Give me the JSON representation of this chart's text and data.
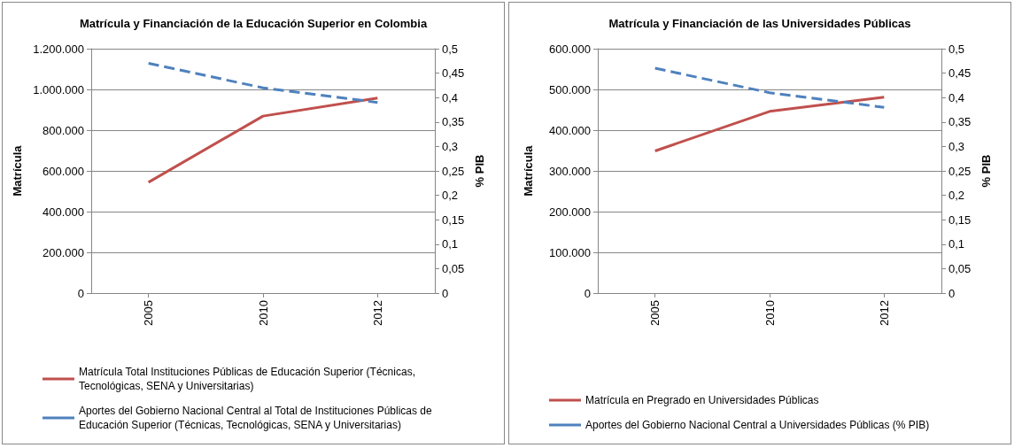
{
  "chart_data": [
    {
      "type": "line",
      "title": "Matrícula y Financiación de la Educación Superior en Colombia",
      "ylabel": "Matrícula",
      "y2label": "% PIB",
      "categories": [
        "2005",
        "2010",
        "2012"
      ],
      "series": [
        {
          "name": "Matrícula Total Instituciones Públicas de Educación Superior (Técnicas, Tecnológicas, SENA y Universitarias)",
          "color": "#c0504d",
          "values": [
            544000,
            869000,
            958000
          ],
          "line_style": "solid"
        },
        {
          "name": "Aportes del Gobierno Nacional Central al Total de Instituciones Públicas de Educación Superior (Técnicas, Tecnológicas, SENA y Universitarias)",
          "color": "#4f81bd",
          "values": [
            0.47,
            0.42,
            0.39
          ],
          "axis": "y2",
          "line_style": "dashed"
        }
      ],
      "ylim": [
        0,
        1200000
      ],
      "yticks": [
        0,
        {
          "value": 200000,
          "label": "200.000"
        },
        {
          "value": 400000,
          "label": "400.000"
        },
        {
          "value": 600000,
          "label": "600.000"
        },
        {
          "value": 800000,
          "label": "800.000"
        },
        {
          "value": 1000000,
          "label": "1.000.000"
        },
        {
          "value": 1200000,
          "label": "1.200.000"
        }
      ],
      "y2lim": [
        0,
        0.5
      ],
      "y2ticks": [
        0,
        {
          "value": 0.05,
          "label": "0,05"
        },
        {
          "value": 0.1,
          "label": "0,1"
        },
        {
          "value": 0.15,
          "label": "0,15"
        },
        {
          "value": 0.2,
          "label": "0,2"
        },
        {
          "value": 0.25,
          "label": "0,25"
        },
        {
          "value": 0.3,
          "label": "0,3"
        },
        {
          "value": 0.35,
          "label": "0,35"
        },
        {
          "value": 0.4,
          "label": "0,4"
        },
        {
          "value": 0.45,
          "label": "0,45"
        },
        {
          "value": 0.5,
          "label": "0,5"
        }
      ],
      "grid": "y",
      "legend": "bottom",
      "marker": "none"
    },
    {
      "type": "line",
      "title": "Matrícula y Financiación de las Universidades Públicas",
      "ylabel": "Matrícula",
      "y2label": "% PIB",
      "categories": [
        "2005",
        "2010",
        "2012"
      ],
      "series": [
        {
          "name": "Matrícula en Pregrado en Universidades Públicas",
          "color": "#c0504d",
          "values": [
            349000,
            446000,
            481000
          ],
          "line_style": "solid"
        },
        {
          "name": "Aportes del Gobierno Nacional Central a Universidades Públicas (% PIB)",
          "color": "#4f81bd",
          "values": [
            0.46,
            0.41,
            0.38
          ],
          "axis": "y2",
          "line_style": "dashed"
        }
      ],
      "ylim": [
        0,
        600000
      ],
      "yticks": [
        0,
        {
          "value": 100000,
          "label": "100.000"
        },
        {
          "value": 200000,
          "label": "200.000"
        },
        {
          "value": 300000,
          "label": "300.000"
        },
        {
          "value": 400000,
          "label": "400.000"
        },
        {
          "value": 500000,
          "label": "500.000"
        },
        {
          "value": 600000,
          "label": "600.000"
        }
      ],
      "y2lim": [
        0,
        0.5
      ],
      "y2ticks": [
        0,
        {
          "value": 0.05,
          "label": "0,05"
        },
        {
          "value": 0.1,
          "label": "0,1"
        },
        {
          "value": 0.15,
          "label": "0,15"
        },
        {
          "value": 0.2,
          "label": "0,2"
        },
        {
          "value": 0.25,
          "label": "0,25"
        },
        {
          "value": 0.3,
          "label": "0,3"
        },
        {
          "value": 0.35,
          "label": "0,35"
        },
        {
          "value": 0.4,
          "label": "0,4"
        },
        {
          "value": 0.45,
          "label": "0,45"
        },
        {
          "value": 0.5,
          "label": "0,5"
        }
      ],
      "grid": "y",
      "legend": "bottom",
      "marker": "none"
    }
  ]
}
